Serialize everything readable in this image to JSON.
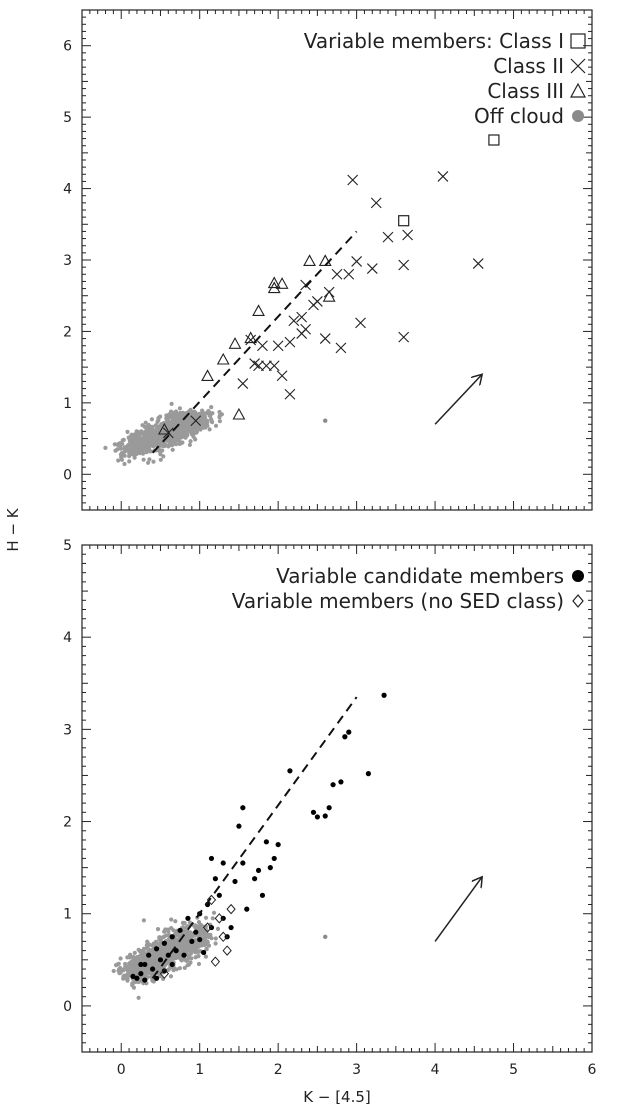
{
  "figure": {
    "xlabel": "K − [4.5]",
    "ylabel": "H − K"
  },
  "chart_data": [
    {
      "type": "scatter",
      "panel": "top",
      "xlim": [
        -0.5,
        6
      ],
      "ylim": [
        -0.5,
        6.5
      ],
      "x_ticks": [
        0,
        1,
        2,
        3,
        4,
        5,
        6
      ],
      "y_ticks": [
        0,
        1,
        2,
        3,
        4,
        5,
        6
      ],
      "x_tick_labels_shown": false,
      "grid": false,
      "legend_position": "top-right",
      "legend": [
        {
          "label": "Variable members: Class I",
          "marker": "square"
        },
        {
          "label": "Class II",
          "marker": "x"
        },
        {
          "label": "Class III",
          "marker": "triangle"
        },
        {
          "label": "Off cloud",
          "marker": "filled-circle-grey"
        }
      ],
      "reddening_line": {
        "x": [
          0.4,
          3.0
        ],
        "y": [
          0.3,
          3.4
        ]
      },
      "reddening_vector": {
        "x": [
          4.0,
          4.6
        ],
        "y": [
          0.7,
          1.4
        ]
      },
      "series": [
        {
          "name": "Class I",
          "marker": "square",
          "points": [
            [
              3.6,
              3.55
            ],
            [
              4.75,
              4.68
            ]
          ]
        },
        {
          "name": "Class II",
          "marker": "x",
          "points": [
            [
              0.6,
              0.58
            ],
            [
              0.95,
              0.75
            ],
            [
              1.55,
              1.27
            ],
            [
              1.7,
              1.55
            ],
            [
              1.75,
              1.52
            ],
            [
              1.8,
              1.8
            ],
            [
              1.95,
              1.52
            ],
            [
              2.0,
              1.8
            ],
            [
              2.05,
              1.38
            ],
            [
              2.15,
              1.12
            ],
            [
              2.15,
              1.85
            ],
            [
              2.2,
              2.15
            ],
            [
              2.3,
              2.2
            ],
            [
              2.3,
              1.97
            ],
            [
              2.35,
              2.03
            ],
            [
              2.35,
              2.65
            ],
            [
              2.45,
              2.37
            ],
            [
              2.5,
              2.42
            ],
            [
              2.6,
              1.9
            ],
            [
              2.65,
              2.55
            ],
            [
              2.75,
              2.8
            ],
            [
              2.8,
              1.77
            ],
            [
              2.9,
              2.8
            ],
            [
              3.0,
              2.98
            ],
            [
              3.05,
              2.12
            ],
            [
              3.2,
              2.88
            ],
            [
              3.25,
              3.8
            ],
            [
              3.4,
              3.32
            ],
            [
              3.6,
              2.93
            ],
            [
              3.6,
              1.92
            ],
            [
              3.65,
              3.35
            ],
            [
              2.95,
              4.12
            ],
            [
              4.1,
              4.17
            ],
            [
              4.55,
              2.95
            ],
            [
              1.65,
              1.88
            ],
            [
              1.85,
              1.52
            ]
          ]
        },
        {
          "name": "Class III",
          "marker": "triangle",
          "points": [
            [
              0.55,
              0.62
            ],
            [
              1.1,
              1.37
            ],
            [
              1.3,
              1.6
            ],
            [
              1.45,
              1.82
            ],
            [
              1.5,
              0.83
            ],
            [
              1.65,
              1.9
            ],
            [
              1.75,
              2.28
            ],
            [
              1.95,
              2.6
            ],
            [
              1.95,
              2.67
            ],
            [
              2.05,
              2.66
            ],
            [
              2.4,
              2.98
            ],
            [
              2.6,
              2.98
            ],
            [
              2.65,
              2.48
            ]
          ]
        },
        {
          "name": "Off cloud",
          "marker": "filled-circle-grey",
          "points": [
            [
              2.6,
              0.75
            ]
          ]
        }
      ]
    },
    {
      "type": "scatter",
      "panel": "bottom",
      "xlim": [
        -0.5,
        6
      ],
      "ylim": [
        -0.5,
        5
      ],
      "x_ticks": [
        0,
        1,
        2,
        3,
        4,
        5,
        6
      ],
      "y_ticks": [
        0,
        1,
        2,
        3,
        4,
        5
      ],
      "x_tick_labels_shown": true,
      "grid": false,
      "legend_position": "top-right",
      "legend": [
        {
          "label": "Variable candidate members",
          "marker": "filled-circle-black"
        },
        {
          "label": "Variable members (no SED class)",
          "marker": "diamond"
        }
      ],
      "reddening_line": {
        "x": [
          0.4,
          3.0
        ],
        "y": [
          0.3,
          3.35
        ]
      },
      "reddening_vector": {
        "x": [
          4.0,
          4.6
        ],
        "y": [
          0.7,
          1.4
        ]
      },
      "series": [
        {
          "name": "Variable candidate members",
          "marker": "filled-circle-black",
          "points": [
            [
              0.15,
              0.32
            ],
            [
              0.2,
              0.3
            ],
            [
              0.25,
              0.35
            ],
            [
              0.3,
              0.28
            ],
            [
              0.3,
              0.45
            ],
            [
              0.35,
              0.55
            ],
            [
              0.4,
              0.4
            ],
            [
              0.45,
              0.3
            ],
            [
              0.45,
              0.62
            ],
            [
              0.5,
              0.5
            ],
            [
              0.55,
              0.68
            ],
            [
              0.55,
              0.38
            ],
            [
              0.6,
              0.55
            ],
            [
              0.65,
              0.75
            ],
            [
              0.65,
              0.45
            ],
            [
              0.7,
              0.6
            ],
            [
              0.75,
              0.82
            ],
            [
              0.8,
              0.55
            ],
            [
              0.85,
              0.95
            ],
            [
              0.9,
              0.7
            ],
            [
              0.95,
              0.8
            ],
            [
              1.0,
              1.0
            ],
            [
              1.0,
              0.72
            ],
            [
              1.05,
              0.58
            ],
            [
              1.1,
              1.1
            ],
            [
              1.15,
              1.6
            ],
            [
              1.15,
              0.85
            ],
            [
              1.2,
              1.38
            ],
            [
              1.25,
              1.2
            ],
            [
              1.3,
              0.95
            ],
            [
              1.3,
              1.55
            ],
            [
              1.35,
              0.75
            ],
            [
              1.4,
              0.85
            ],
            [
              1.45,
              1.35
            ],
            [
              1.5,
              1.95
            ],
            [
              1.55,
              2.15
            ],
            [
              1.55,
              1.55
            ],
            [
              1.6,
              1.05
            ],
            [
              1.7,
              1.38
            ],
            [
              1.75,
              1.47
            ],
            [
              1.8,
              1.2
            ],
            [
              1.85,
              1.78
            ],
            [
              1.95,
              1.6
            ],
            [
              2.0,
              1.75
            ],
            [
              2.15,
              2.55
            ],
            [
              2.45,
              2.1
            ],
            [
              2.5,
              2.05
            ],
            [
              2.6,
              2.06
            ],
            [
              2.65,
              2.15
            ],
            [
              2.7,
              2.4
            ],
            [
              2.8,
              2.43
            ],
            [
              2.85,
              2.92
            ],
            [
              2.9,
              2.97
            ],
            [
              3.15,
              2.52
            ],
            [
              3.35,
              3.37
            ],
            [
              1.9,
              1.5
            ],
            [
              0.25,
              0.45
            ]
          ]
        },
        {
          "name": "Variable members (no SED class)",
          "marker": "diamond",
          "points": [
            [
              0.55,
              0.35
            ],
            [
              1.1,
              0.85
            ],
            [
              1.15,
              1.15
            ],
            [
              1.2,
              0.48
            ],
            [
              1.25,
              0.95
            ],
            [
              1.3,
              0.75
            ],
            [
              1.35,
              0.6
            ],
            [
              1.4,
              1.05
            ]
          ]
        },
        {
          "name": "Off cloud",
          "marker": "filled-circle-grey",
          "points": [
            [
              2.6,
              0.75
            ]
          ]
        }
      ]
    }
  ]
}
